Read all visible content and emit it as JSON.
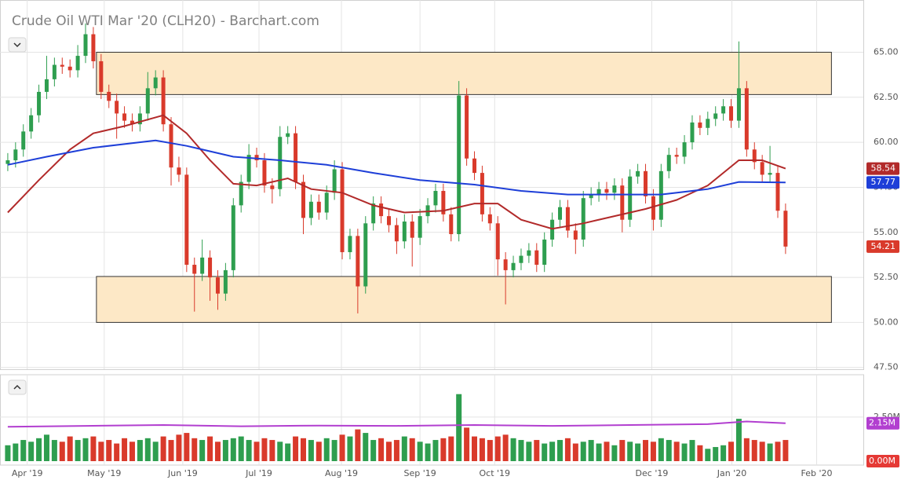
{
  "chart_data": [
    {
      "type": "candlestick",
      "title": "Crude Oil WTI Mar '20 (CLH20) - Barchart.com",
      "xlim": [
        -1,
        110
      ],
      "xticks": [
        {
          "value": 2.5,
          "label": "Apr '19"
        },
        {
          "value": 12.4,
          "label": "May '19"
        },
        {
          "value": 22.5,
          "label": "Jun '19"
        },
        {
          "value": 32.3,
          "label": "Jul '19"
        },
        {
          "value": 42.9,
          "label": "Aug '19"
        },
        {
          "value": 53.0,
          "label": "Sep '19"
        },
        {
          "value": 62.6,
          "label": "Oct '19"
        },
        {
          "value": 82.8,
          "label": "Dec '19"
        },
        {
          "value": 93.1,
          "label": "Jan '20"
        },
        {
          "value": 104.0,
          "label": "Feb '20"
        }
      ],
      "ylim": [
        47.4,
        67.9
      ],
      "yticks": [
        {
          "value": 47.5,
          "label": "47.50"
        },
        {
          "value": 50,
          "label": "50.00"
        },
        {
          "value": 52.5,
          "label": "52.50"
        },
        {
          "value": 55,
          "label": "55.00"
        },
        {
          "value": 57.5,
          "label": "57.50"
        },
        {
          "value": 60,
          "label": "60.00"
        },
        {
          "value": 62.5,
          "label": "62.50"
        },
        {
          "value": 65,
          "label": "65.00"
        }
      ],
      "grid": true,
      "up_color": "#2e9e4f",
      "down_color": "#d93a2b",
      "open": [
        58.8,
        59.0,
        59.6,
        60.6,
        61.5,
        62.8,
        63.5,
        64.3,
        64.2,
        64.0,
        64.8,
        66.0,
        64.5,
        62.8,
        62.3,
        61.6,
        61.2,
        61.0,
        61.6,
        63.0,
        63.6,
        61.0,
        58.6,
        58.2,
        53.2,
        52.7,
        53.6,
        52.5,
        51.6,
        52.9,
        56.5,
        57.8,
        59.3,
        59.0,
        57.6,
        57.4,
        60.3,
        60.5,
        57.8,
        55.8,
        56.7,
        56.1,
        57.2,
        58.5,
        53.9,
        54.8,
        52.0,
        55.5,
        56.6,
        55.9,
        55.4,
        54.5,
        55.6,
        54.7,
        55.9,
        56.5,
        57.3,
        56.0,
        54.9,
        62.6,
        59.1,
        58.3,
        56.0,
        55.5,
        53.5,
        52.9,
        53.3,
        53.7,
        54.0,
        53.2,
        54.6,
        55.7,
        56.4,
        55.1,
        54.6,
        56.9,
        57.1,
        57.4,
        57.2,
        57.6,
        55.7,
        58.1,
        58.4,
        57.0,
        55.7,
        58.4,
        59.3,
        59.2,
        60.0,
        61.1,
        60.8,
        61.3,
        61.6,
        62.0,
        61.2,
        63.0,
        59.6,
        58.9,
        58.2,
        58.3,
        56.2
      ],
      "high": [
        59.4,
        60.0,
        61.0,
        61.9,
        63.2,
        64.8,
        64.7,
        64.7,
        64.6,
        65.4,
        66.6,
        66.4,
        64.9,
        63.2,
        62.7,
        62.0,
        61.6,
        62.0,
        63.9,
        64.0,
        64.0,
        61.4,
        59.2,
        58.6,
        53.6,
        54.6,
        54.0,
        52.9,
        53.3,
        56.9,
        58.2,
        59.9,
        59.7,
        59.4,
        58.0,
        60.9,
        60.9,
        60.9,
        58.2,
        57.1,
        57.1,
        57.6,
        59.0,
        58.9,
        55.2,
        55.2,
        55.9,
        57.0,
        57.0,
        56.3,
        55.8,
        56.0,
        56.0,
        56.3,
        56.9,
        57.7,
        57.7,
        56.4,
        63.4,
        63.0,
        59.5,
        58.7,
        56.4,
        55.9,
        53.9,
        53.7,
        54.1,
        54.4,
        54.4,
        55.0,
        56.1,
        56.8,
        56.8,
        55.5,
        57.3,
        57.5,
        57.8,
        57.8,
        58.0,
        58.0,
        58.5,
        58.8,
        58.8,
        57.4,
        58.8,
        59.7,
        59.7,
        60.4,
        61.5,
        61.5,
        61.7,
        62.0,
        62.4,
        62.4,
        65.6,
        63.4,
        60.0,
        59.3,
        59.8,
        58.7,
        56.6
      ],
      "low": [
        58.4,
        58.6,
        59.2,
        60.2,
        61.1,
        62.4,
        63.1,
        63.8,
        63.6,
        63.6,
        64.4,
        64.1,
        62.4,
        61.9,
        60.2,
        60.8,
        60.6,
        60.6,
        61.2,
        62.6,
        60.6,
        57.6,
        57.8,
        52.8,
        50.6,
        52.3,
        51.2,
        50.7,
        51.2,
        52.5,
        56.1,
        57.4,
        58.6,
        57.2,
        56.6,
        57.0,
        59.9,
        57.4,
        54.9,
        55.4,
        55.7,
        55.7,
        56.8,
        53.5,
        53.5,
        50.5,
        51.6,
        55.1,
        55.5,
        55.0,
        53.8,
        54.1,
        53.1,
        54.3,
        55.5,
        56.1,
        55.6,
        54.5,
        54.5,
        58.7,
        57.9,
        55.6,
        55.1,
        52.6,
        51.0,
        52.5,
        52.9,
        53.3,
        52.8,
        52.8,
        54.2,
        55.3,
        54.7,
        53.8,
        54.2,
        56.5,
        56.7,
        56.8,
        56.8,
        55.0,
        55.3,
        57.7,
        56.6,
        55.1,
        55.3,
        58.0,
        58.8,
        58.8,
        59.6,
        60.4,
        60.4,
        60.9,
        61.2,
        60.8,
        60.8,
        59.2,
        58.5,
        57.8,
        57.8,
        55.8,
        53.8
      ],
      "close": [
        59.0,
        59.6,
        60.6,
        61.5,
        62.8,
        63.5,
        64.3,
        64.2,
        64.0,
        64.8,
        66.0,
        64.5,
        62.8,
        62.3,
        61.6,
        61.2,
        61.0,
        61.6,
        63.0,
        63.6,
        61.0,
        58.6,
        58.2,
        53.2,
        52.7,
        53.6,
        52.5,
        51.6,
        52.9,
        56.5,
        57.8,
        59.3,
        59.0,
        57.6,
        57.4,
        60.3,
        60.5,
        57.8,
        55.8,
        56.7,
        56.1,
        57.2,
        58.5,
        53.9,
        54.8,
        52.0,
        55.5,
        56.6,
        55.9,
        55.4,
        54.5,
        55.6,
        54.7,
        55.9,
        56.5,
        57.3,
        56.0,
        54.9,
        62.6,
        59.1,
        58.3,
        56.0,
        55.5,
        53.5,
        52.9,
        53.3,
        53.7,
        54.0,
        53.2,
        54.6,
        55.7,
        56.4,
        55.1,
        54.6,
        56.9,
        57.1,
        57.4,
        57.2,
        57.6,
        55.7,
        58.1,
        58.4,
        57.0,
        55.7,
        58.4,
        59.3,
        59.2,
        60.0,
        61.1,
        60.8,
        61.3,
        61.6,
        62.0,
        61.2,
        63.0,
        59.6,
        58.9,
        58.2,
        58.3,
        56.2,
        54.21
      ],
      "zones": [
        [
          62.65,
          65.0
        ],
        [
          50.0,
          52.55
        ]
      ],
      "zone_x": [
        11.4,
        105.9
      ],
      "series": [
        {
          "color": "#b22a2a",
          "x": [
            0,
            4,
            8,
            11,
            15,
            20,
            23,
            26,
            29,
            32,
            36,
            39,
            43,
            47,
            51,
            56,
            60,
            63,
            66,
            70,
            74,
            78,
            82,
            86,
            90,
            94,
            97,
            100
          ],
          "values": [
            56.1,
            57.9,
            59.6,
            60.5,
            60.9,
            61.5,
            60.5,
            59.0,
            57.7,
            57.6,
            58.0,
            57.4,
            57.2,
            56.5,
            56.1,
            56.2,
            56.6,
            56.6,
            55.7,
            55.2,
            55.5,
            55.9,
            56.3,
            56.8,
            57.6,
            59.0,
            59.0,
            58.54
          ]
        },
        {
          "color": "#1e3fd8",
          "x": [
            0,
            5,
            11,
            19,
            23,
            29,
            35,
            41,
            47,
            53,
            60,
            66,
            72,
            78,
            84,
            90,
            94,
            100
          ],
          "values": [
            58.75,
            59.2,
            59.7,
            60.1,
            59.8,
            59.2,
            59.0,
            58.75,
            58.3,
            57.9,
            57.65,
            57.3,
            57.1,
            57.1,
            57.1,
            57.4,
            57.8,
            57.77
          ]
        }
      ]
    },
    {
      "type": "volume",
      "ylim": [
        0,
        4.9
      ],
      "yticks": [
        {
          "value": 2.5,
          "label": "2.50M"
        }
      ],
      "values": [
        0.9,
        1.0,
        1.2,
        1.1,
        1.3,
        1.5,
        1.2,
        1.1,
        1.4,
        1.2,
        1.3,
        1.4,
        1.1,
        1.2,
        1.0,
        1.3,
        1.1,
        1.2,
        1.3,
        1.1,
        1.4,
        1.2,
        1.5,
        1.6,
        1.3,
        1.2,
        1.4,
        1.1,
        1.2,
        1.3,
        1.4,
        1.2,
        1.1,
        1.3,
        1.2,
        1.1,
        1.0,
        1.4,
        1.3,
        1.2,
        1.1,
        1.3,
        1.2,
        1.5,
        1.4,
        1.8,
        1.6,
        1.2,
        1.3,
        1.1,
        1.2,
        1.4,
        1.3,
        1.1,
        1.0,
        1.2,
        1.3,
        1.4,
        3.8,
        1.9,
        1.4,
        1.3,
        1.2,
        1.4,
        1.5,
        1.3,
        1.2,
        1.1,
        1.2,
        1.0,
        1.1,
        1.2,
        1.3,
        1.0,
        1.1,
        1.2,
        1.0,
        1.1,
        0.9,
        1.2,
        1.1,
        1.0,
        1.2,
        1.1,
        1.3,
        1.2,
        1.1,
        1.0,
        1.2,
        0.9,
        0.7,
        0.8,
        0.9,
        1.1,
        2.4,
        1.3,
        1.2,
        1.1,
        1.0,
        1.1,
        1.2
      ],
      "series": [
        {
          "color": "#b23fd0",
          "x": [
            0,
            10,
            20,
            30,
            40,
            50,
            60,
            70,
            80,
            90,
            95,
            100
          ],
          "values": [
            1.95,
            2.0,
            2.05,
            1.98,
            2.02,
            2.0,
            2.05,
            2.0,
            2.05,
            2.1,
            2.25,
            2.15
          ]
        }
      ],
      "badges": [
        {
          "value": 2.15,
          "label": "2.15M",
          "color": "#b23fd0"
        },
        {
          "value": 0,
          "label": "0.00M",
          "color": "#e53935"
        }
      ]
    }
  ]
}
